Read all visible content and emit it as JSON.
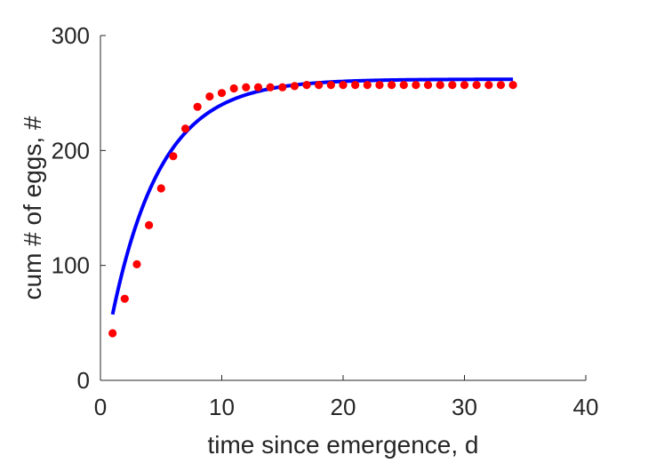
{
  "chart_data": {
    "type": "scatter",
    "xlabel": "time since emergence, d",
    "ylabel": "cum # of eggs, #",
    "xlim": [
      0,
      40
    ],
    "ylim": [
      0,
      300
    ],
    "xticks": [
      0,
      10,
      20,
      30,
      40
    ],
    "yticks": [
      0,
      100,
      200,
      300
    ],
    "xtick_labels": [
      "0",
      "10",
      "20",
      "30",
      "40"
    ],
    "ytick_labels": [
      "0",
      "100",
      "200",
      "300"
    ],
    "grid": false,
    "series": [
      {
        "kind": "points",
        "color": "#ff0000",
        "x": [
          1,
          2,
          3,
          4,
          5,
          6,
          7,
          8,
          9,
          10,
          11,
          12,
          13,
          14,
          15,
          16,
          17,
          18,
          19,
          20,
          21,
          22,
          23,
          24,
          25,
          26,
          27,
          28,
          29,
          30,
          31,
          32,
          33,
          34
        ],
        "y": [
          41,
          71,
          101,
          135,
          167,
          195,
          219,
          238,
          247,
          250,
          254,
          255,
          255,
          255,
          255,
          256,
          257,
          257,
          257,
          257,
          257,
          257,
          257,
          257,
          257,
          257,
          257,
          257,
          257,
          257,
          257,
          257,
          257,
          257
        ]
      },
      {
        "kind": "line",
        "color": "#0000ff",
        "curve": "saturating-exponential",
        "asymptote": 262,
        "rate": 0.247,
        "x_start": 1,
        "x_end": 34
      }
    ]
  }
}
